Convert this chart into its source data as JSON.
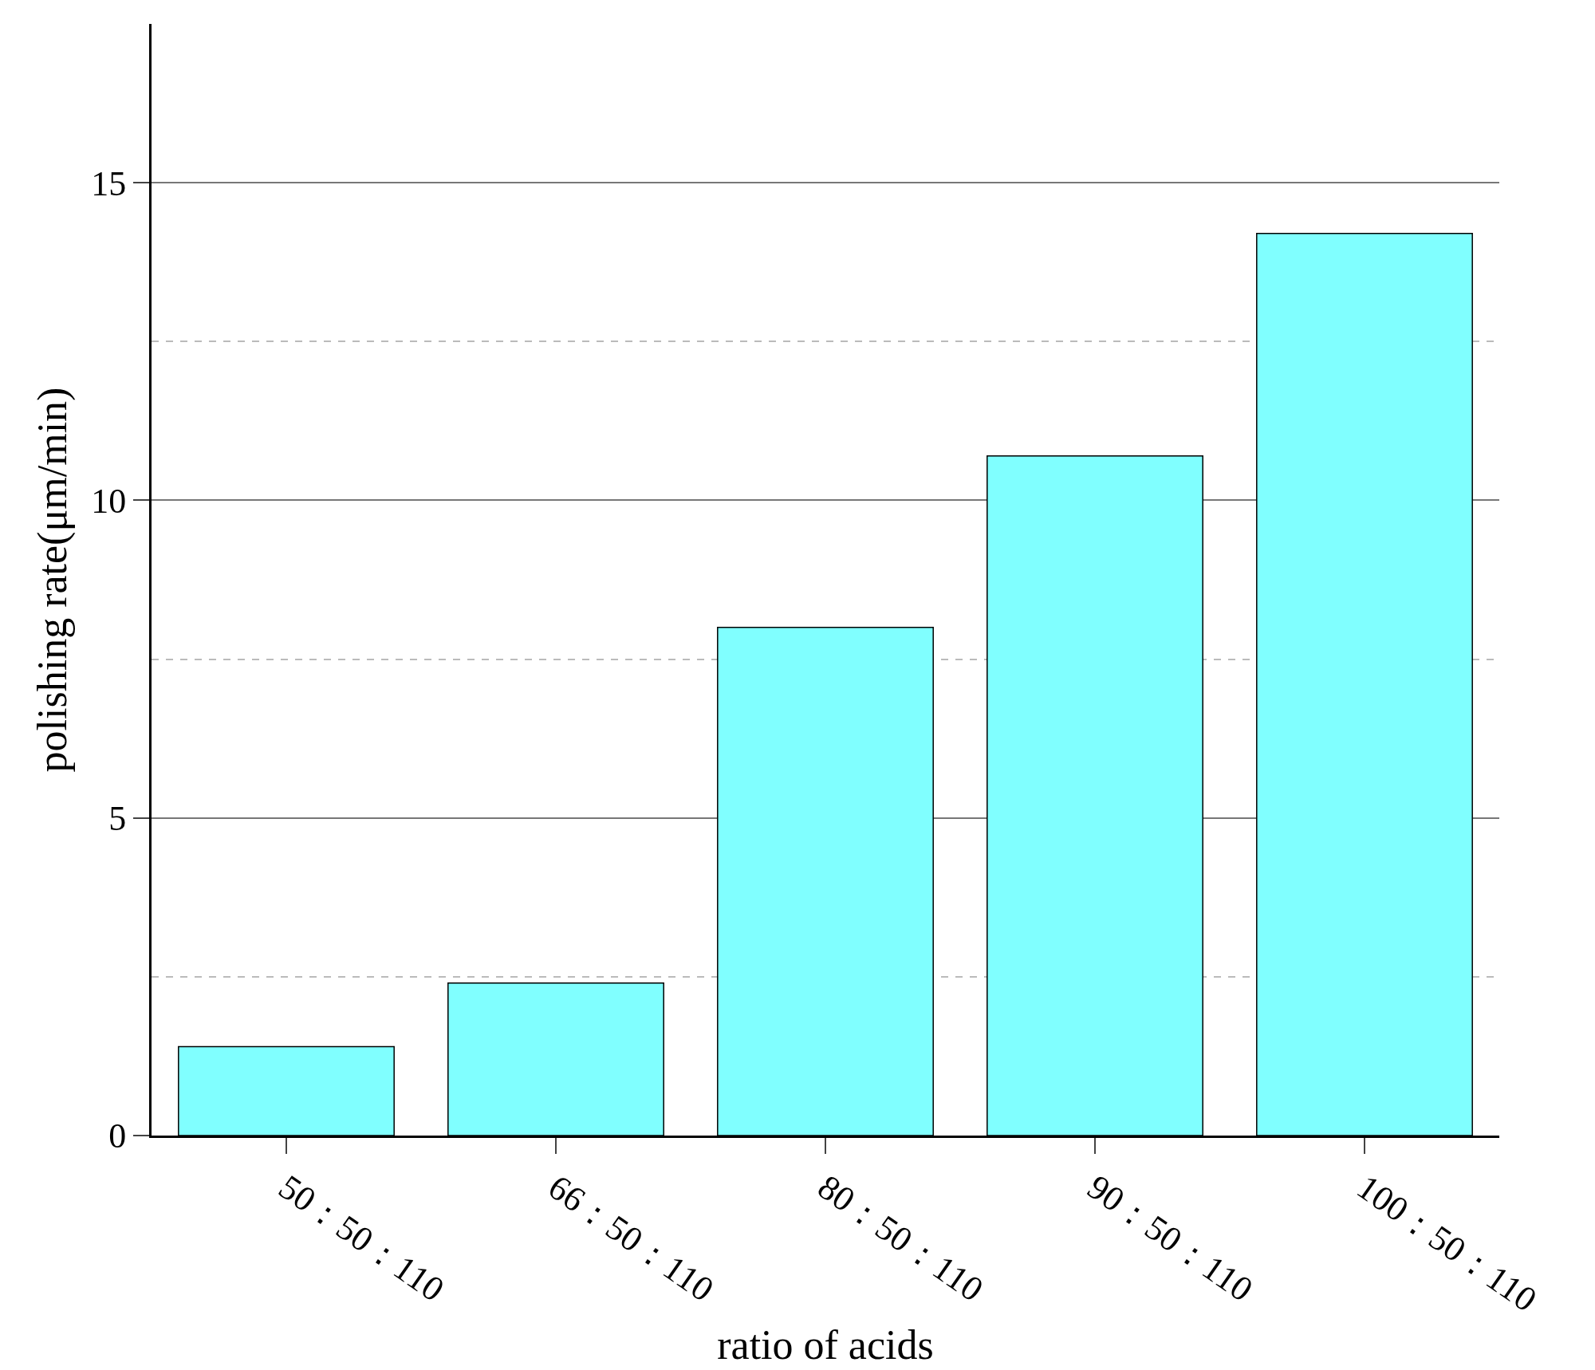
{
  "chart_data": {
    "type": "bar",
    "xlabel": "ratio of acids",
    "ylabel": "polishing rate(μm/min)",
    "categories": [
      "50：50：110",
      "66：50：110",
      "80：50：110",
      "90：50：110",
      "100：50：110"
    ],
    "values": [
      1.4,
      2.4,
      8.0,
      10.7,
      14.2
    ],
    "color": "#80ffff",
    "ylim": [
      0,
      17.5
    ],
    "yticks": [
      0,
      5,
      10,
      15
    ],
    "grid": "y"
  }
}
